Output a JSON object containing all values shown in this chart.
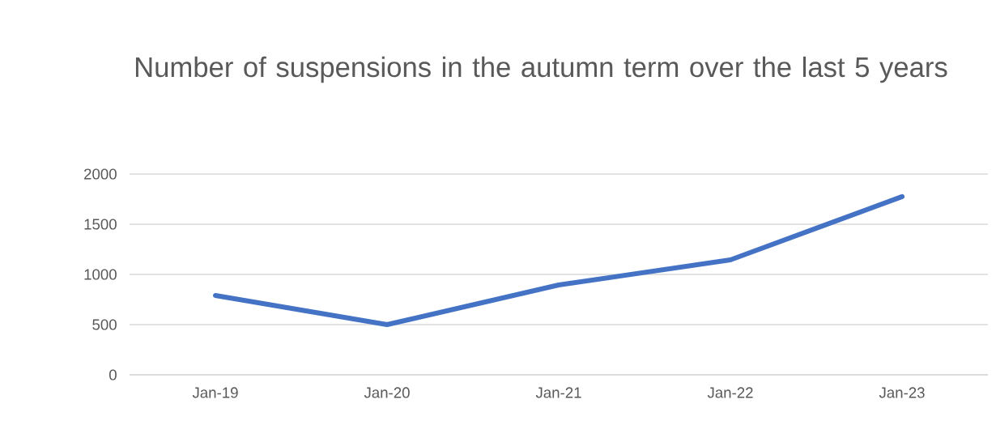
{
  "chart_data": {
    "type": "line",
    "title": "Number of suspensions in the autumn term over the last 5 years",
    "categories": [
      "Jan-19",
      "Jan-20",
      "Jan-21",
      "Jan-22",
      "Jan-23"
    ],
    "series": [
      {
        "color": "#4472c4",
        "values": [
          790,
          500,
          895,
          1145,
          1775
        ]
      }
    ],
    "ylim": [
      0,
      2000
    ],
    "yticks": [
      0,
      500,
      1000,
      1500,
      2000
    ],
    "grid": "y"
  }
}
